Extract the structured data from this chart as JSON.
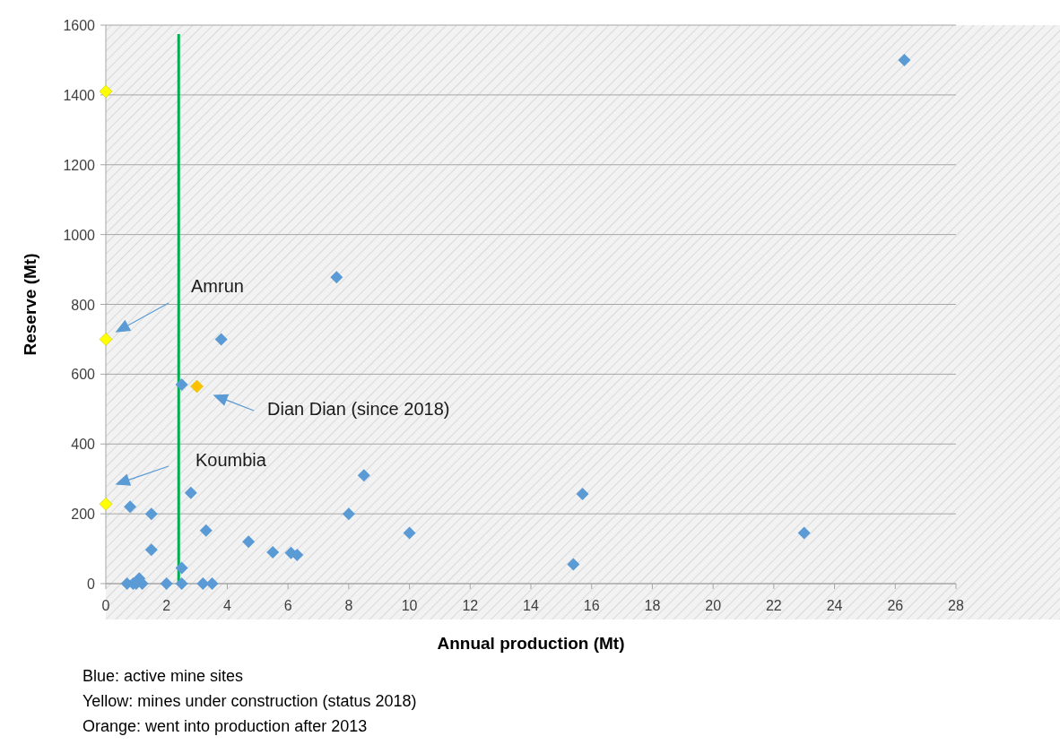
{
  "chart_data": {
    "type": "scatter",
    "xlabel": "Annual production (Mt)",
    "ylabel": "Reserve (Mt)",
    "xlim": [
      0,
      28
    ],
    "xticks": [
      0,
      2,
      4,
      6,
      8,
      10,
      12,
      14,
      16,
      18,
      20,
      22,
      24,
      26,
      28
    ],
    "ylim": [
      0,
      1600
    ],
    "yticks": [
      0,
      200,
      400,
      600,
      800,
      1000,
      1200,
      1400,
      1600
    ],
    "grid": "y",
    "marker": "diamond",
    "series": [
      {
        "color": "#5b9bd5",
        "x": [
          0.8,
          1.5,
          1.5,
          0.7,
          0.9,
          1.0,
          1.1,
          1.2,
          2.0,
          2.5,
          2.5,
          3.2,
          3.5,
          2.8,
          3.3,
          4.7,
          5.5,
          6.1,
          6.3,
          8.0,
          8.5,
          10,
          15.4,
          15.7,
          23,
          26.3,
          7.6,
          3.8,
          2.5
        ],
        "values": [
          220,
          200,
          97,
          0,
          0,
          0,
          15,
          0,
          0,
          45,
          0,
          0,
          0,
          260,
          152,
          120,
          90,
          88,
          82,
          200,
          310,
          145,
          55,
          257,
          145,
          1500,
          878,
          700,
          570
        ]
      },
      {
        "color": "#ffff00",
        "x": [
          0,
          0,
          0
        ],
        "values": [
          1410,
          700,
          228
        ]
      },
      {
        "color": "#ffc000",
        "x": [
          3.0
        ],
        "values": [
          565
        ]
      }
    ],
    "ref_lines": [
      {
        "axis": "x",
        "value": 2.4,
        "color": "#00b050"
      }
    ],
    "annotations": [
      "Amrun",
      "Dian Dian (since 2018)",
      "Koumbia",
      "Blue: active mine sites",
      "Yellow: mines under construction (status 2018)",
      "Orange: went into production after 2013"
    ]
  }
}
